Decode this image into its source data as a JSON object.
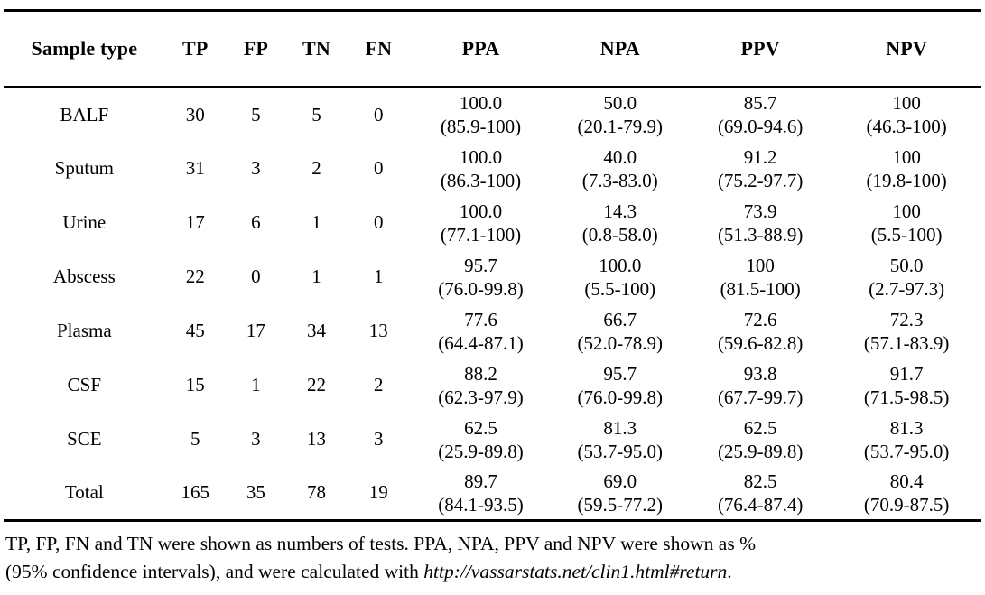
{
  "table": {
    "columns": [
      "Sample type",
      "TP",
      "FP",
      "TN",
      "FN",
      "PPA",
      "NPA",
      "PPV",
      "NPV"
    ],
    "rows": [
      {
        "sample": "BALF",
        "tp": "30",
        "fp": "5",
        "tn": "5",
        "fn": "0",
        "ppa": "100.0",
        "ppa_ci": "(85.9-100)",
        "npa": "50.0",
        "npa_ci": "(20.1-79.9)",
        "ppv": "85.7",
        "ppv_ci": "(69.0-94.6)",
        "npv": "100",
        "npv_ci": "(46.3-100)"
      },
      {
        "sample": "Sputum",
        "tp": "31",
        "fp": "3",
        "tn": "2",
        "fn": "0",
        "ppa": "100.0",
        "ppa_ci": "(86.3-100)",
        "npa": "40.0",
        "npa_ci": "(7.3-83.0)",
        "ppv": "91.2",
        "ppv_ci": "(75.2-97.7)",
        "npv": "100",
        "npv_ci": "(19.8-100)"
      },
      {
        "sample": "Urine",
        "tp": "17",
        "fp": "6",
        "tn": "1",
        "fn": "0",
        "ppa": "100.0",
        "ppa_ci": "(77.1-100)",
        "npa": "14.3",
        "npa_ci": "(0.8-58.0)",
        "ppv": "73.9",
        "ppv_ci": "(51.3-88.9)",
        "npv": "100",
        "npv_ci": "(5.5-100)"
      },
      {
        "sample": "Abscess",
        "tp": "22",
        "fp": "0",
        "tn": "1",
        "fn": "1",
        "ppa": "95.7",
        "ppa_ci": "(76.0-99.8)",
        "npa": "100.0",
        "npa_ci": "(5.5-100)",
        "ppv": "100",
        "ppv_ci": "(81.5-100)",
        "npv": "50.0",
        "npv_ci": "(2.7-97.3)"
      },
      {
        "sample": "Plasma",
        "tp": "45",
        "fp": "17",
        "tn": "34",
        "fn": "13",
        "ppa": "77.6",
        "ppa_ci": "(64.4-87.1)",
        "npa": "66.7",
        "npa_ci": "(52.0-78.9)",
        "ppv": "72.6",
        "ppv_ci": "(59.6-82.8)",
        "npv": "72.3",
        "npv_ci": "(57.1-83.9)"
      },
      {
        "sample": "CSF",
        "tp": "15",
        "fp": "1",
        "tn": "22",
        "fn": "2",
        "ppa": "88.2",
        "ppa_ci": "(62.3-97.9)",
        "npa": "95.7",
        "npa_ci": "(76.0-99.8)",
        "ppv": "93.8",
        "ppv_ci": "(67.7-99.7)",
        "npv": "91.7",
        "npv_ci": "(71.5-98.5)"
      },
      {
        "sample": "SCE",
        "tp": "5",
        "fp": "3",
        "tn": "13",
        "fn": "3",
        "ppa": "62.5",
        "ppa_ci": "(25.9-89.8)",
        "npa": "81.3",
        "npa_ci": "(53.7-95.0)",
        "ppv": "62.5",
        "ppv_ci": "(25.9-89.8)",
        "npv": "81.3",
        "npv_ci": "(53.7-95.0)"
      },
      {
        "sample": "Total",
        "tp": "165",
        "fp": "35",
        "tn": "78",
        "fn": "19",
        "ppa": "89.7",
        "ppa_ci": "(84.1-93.5)",
        "npa": "69.0",
        "npa_ci": "(59.5-77.2)",
        "ppv": "82.5",
        "ppv_ci": "(76.4-87.4)",
        "npv": "80.4",
        "npv_ci": "(70.9-87.5)"
      }
    ]
  },
  "footnote": {
    "line1": "TP, FP, FN and TN were shown as numbers of tests. PPA, NPA, PPV and NPV were shown as %",
    "line2_prefix": "(95% confidence intervals), and were calculated with ",
    "line2_link": "http://vassarstats.net/clin1.html#return",
    "line2_suffix": "."
  },
  "colors": {
    "text": "#000000",
    "background": "#ffffff",
    "rule": "#000000"
  }
}
